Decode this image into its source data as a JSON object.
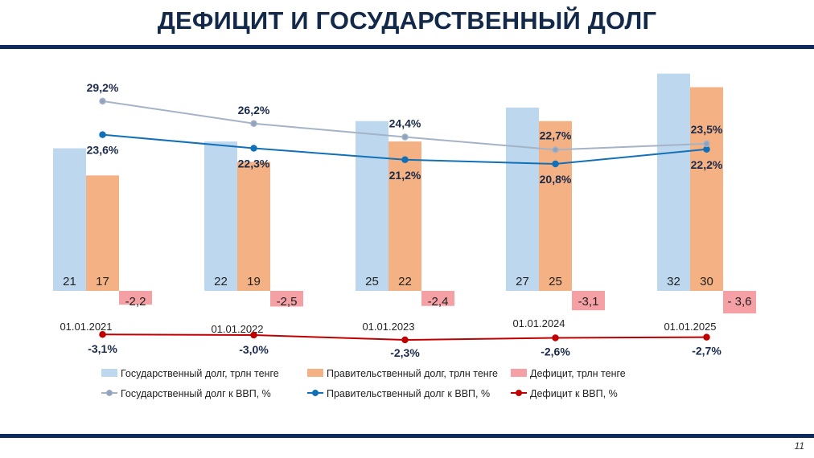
{
  "title": "ДЕФИЦИТ И ГОСУДАРСТВЕННЫЙ ДОЛГ",
  "page_number": "11",
  "colors": {
    "title": "#13294a",
    "rule": "#0f2a5c",
    "state_debt_bar": "#bdd7ee",
    "gov_debt_bar": "#f4b183",
    "deficit_bar": "#f4a0a4",
    "state_debt_line": "#a5b3c6",
    "gov_debt_line": "#1170b8",
    "deficit_line": "#c00000"
  },
  "chart_data": {
    "type": "bar",
    "categories": [
      "01.01.2021",
      "01.01.2022",
      "01.01.2023",
      "01.01.2024",
      "01.01.2025"
    ],
    "series": [
      {
        "name": "Государственный долг, трлн тенге",
        "kind": "bar",
        "axis": "primary",
        "values": [
          21,
          22,
          25,
          27,
          32
        ],
        "labels": [
          "21",
          "22",
          "25",
          "27",
          "32"
        ]
      },
      {
        "name": "Правительственный долг, трлн тенге",
        "kind": "bar",
        "axis": "primary",
        "values": [
          17,
          19,
          22,
          25,
          30
        ],
        "labels": [
          "17",
          "19",
          "22",
          "25",
          "30"
        ]
      },
      {
        "name": "Дефицит, трлн тенге",
        "kind": "bar",
        "axis": "primary",
        "values": [
          -2.2,
          -2.5,
          -2.4,
          -3.1,
          -3.6
        ],
        "labels": [
          "-2,2",
          "-2,5",
          "-2,4",
          "-3,1",
          "- 3,6"
        ]
      },
      {
        "name": "Государственный долг к ВВП, %",
        "kind": "line",
        "axis": "secondary",
        "values": [
          29.2,
          26.2,
          24.4,
          22.7,
          23.5
        ],
        "labels": [
          "29,2%",
          "26,2%",
          "24,4%",
          "22,7%",
          "23,5%"
        ]
      },
      {
        "name": "Правительственный долг к ВВП, %",
        "kind": "line",
        "axis": "secondary",
        "values": [
          23.6,
          22.3,
          21.2,
          20.8,
          22.2
        ],
        "labels": [
          "23,6%",
          "22,3%",
          "21,2%",
          "20,8%",
          "22,2%"
        ]
      },
      {
        "name": "Дефицит к ВВП, %",
        "kind": "line",
        "axis": "secondary",
        "values": [
          -3.1,
          -3.0,
          -2.3,
          -2.6,
          -2.7
        ],
        "labels": [
          "-3,1%",
          "-3,0%",
          "-2,3%",
          "-2,6%",
          "-2,7%"
        ]
      }
    ],
    "grid": false,
    "legend": "bottom"
  }
}
